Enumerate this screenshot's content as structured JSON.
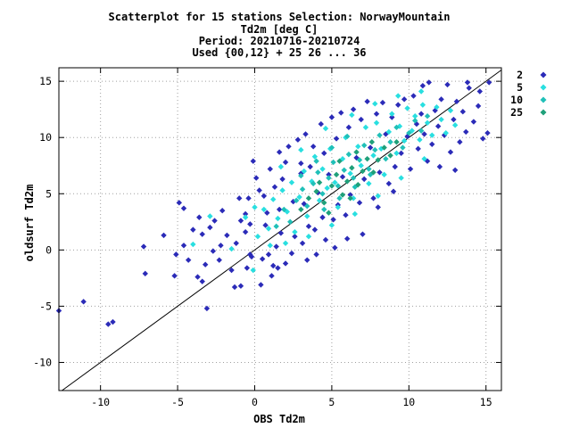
{
  "chart_data": {
    "type": "scatter",
    "title_lines": [
      "Scatterplot for   15 stations Selection: NorwayMountain",
      "Td2m [deg C]",
      "Period: 20210716-20210724",
      "Used {00,12} + 25 26 ... 36"
    ],
    "xlabel": "OBS Td2m",
    "ylabel": "oldsurf Td2m",
    "xlim": [
      -12.7,
      16.0
    ],
    "ylim": [
      -12.5,
      16.2
    ],
    "xticks": [
      -10,
      -5,
      0,
      5,
      10,
      15
    ],
    "yticks": [
      -10,
      -5,
      0,
      5,
      10,
      15
    ],
    "grid": true,
    "diagonal_line": true,
    "legend_position": "outside-right",
    "legend": [
      {
        "label": "2",
        "color": "#2b2bb8"
      },
      {
        "label": "5",
        "color": "#29dfe0"
      },
      {
        "label": "10",
        "color": "#20c0b8"
      },
      {
        "label": "25",
        "color": "#1fa07a"
      }
    ],
    "series": [
      {
        "name": "2",
        "color": "#2b2bb8",
        "points": [
          [
            -12.7,
            -5.4
          ],
          [
            -11.1,
            -4.6
          ],
          [
            -9.5,
            -6.6
          ],
          [
            -9.2,
            -6.4
          ],
          [
            -7.1,
            -2.1
          ],
          [
            -7.2,
            0.3
          ],
          [
            -5.9,
            1.3
          ],
          [
            -5.2,
            -2.3
          ],
          [
            -4.9,
            4.2
          ],
          [
            -4.6,
            0.4
          ],
          [
            -4.6,
            3.7
          ],
          [
            -4.3,
            -0.9
          ],
          [
            -3.7,
            -2.4
          ],
          [
            -3.4,
            1.4
          ],
          [
            -3.4,
            -2.8
          ],
          [
            -3.2,
            -1.3
          ],
          [
            -3.1,
            -5.2
          ],
          [
            -2.9,
            2.0
          ],
          [
            -2.7,
            -0.1
          ],
          [
            -2.3,
            -0.9
          ],
          [
            -2.2,
            0.4
          ],
          [
            -2.1,
            3.5
          ],
          [
            -1.8,
            1.3
          ],
          [
            -1.5,
            -1.8
          ],
          [
            -1.3,
            -3.3
          ],
          [
            -1.2,
            0.6
          ],
          [
            -1.0,
            4.6
          ],
          [
            -0.9,
            2.6
          ],
          [
            -0.9,
            -3.2
          ],
          [
            -0.6,
            1.6
          ],
          [
            -0.5,
            -1.6
          ],
          [
            -0.4,
            4.6
          ],
          [
            -0.3,
            -0.4
          ],
          [
            -0.3,
            2.3
          ],
          [
            -0.2,
            -0.6
          ],
          [
            0.3,
            5.3
          ],
          [
            0.4,
            -3.1
          ],
          [
            0.5,
            -0.8
          ],
          [
            0.6,
            4.8
          ],
          [
            0.7,
            2.2
          ],
          [
            0.9,
            -0.4
          ],
          [
            1.1,
            -2.3
          ],
          [
            1.3,
            5.6
          ],
          [
            1.4,
            0.3
          ],
          [
            1.5,
            -1.6
          ],
          [
            1.6,
            8.7
          ],
          [
            1.7,
            1.5
          ],
          [
            1.8,
            6.3
          ],
          [
            2.2,
            9.2
          ],
          [
            2.4,
            -0.3
          ],
          [
            2.5,
            4.3
          ],
          [
            2.6,
            1.2
          ],
          [
            2.8,
            9.8
          ],
          [
            3.0,
            7.7
          ],
          [
            3.1,
            0.6
          ],
          [
            3.2,
            4.1
          ],
          [
            3.3,
            10.3
          ],
          [
            3.5,
            2.1
          ],
          [
            3.6,
            7.4
          ],
          [
            3.8,
            9.2
          ],
          [
            3.9,
            1.8
          ],
          [
            4.1,
            5.1
          ],
          [
            4.3,
            11.2
          ],
          [
            4.4,
            2.9
          ],
          [
            4.5,
            8.6
          ],
          [
            4.6,
            0.9
          ],
          [
            4.8,
            6.7
          ],
          [
            5.0,
            11.8
          ],
          [
            5.1,
            2.7
          ],
          [
            5.3,
            9.9
          ],
          [
            5.4,
            4.0
          ],
          [
            5.6,
            12.2
          ],
          [
            5.7,
            6.5
          ],
          [
            5.9,
            3.1
          ],
          [
            6.1,
            10.9
          ],
          [
            6.2,
            4.9
          ],
          [
            6.4,
            12.5
          ],
          [
            6.6,
            8.2
          ],
          [
            6.8,
            4.2
          ],
          [
            6.9,
            11.6
          ],
          [
            7.1,
            6.3
          ],
          [
            7.3,
            13.2
          ],
          [
            7.5,
            9.1
          ],
          [
            7.7,
            4.6
          ],
          [
            7.9,
            12.1
          ],
          [
            8.1,
            6.9
          ],
          [
            8.3,
            13.1
          ],
          [
            8.5,
            10.3
          ],
          [
            8.7,
            5.9
          ],
          [
            8.9,
            11.8
          ],
          [
            9.1,
            7.4
          ],
          [
            9.3,
            12.9
          ],
          [
            9.5,
            8.6
          ],
          [
            9.7,
            13.4
          ],
          [
            9.9,
            10.1
          ],
          [
            10.1,
            7.2
          ],
          [
            10.3,
            13.7
          ],
          [
            10.5,
            11.2
          ],
          [
            10.6,
            9.0
          ],
          [
            10.8,
            12.1
          ],
          [
            11.0,
            10.3
          ],
          [
            11.2,
            7.9
          ],
          [
            11.3,
            14.9
          ],
          [
            11.5,
            9.4
          ],
          [
            11.7,
            12.4
          ],
          [
            11.9,
            11.0
          ],
          [
            12.1,
            13.4
          ],
          [
            12.3,
            10.2
          ],
          [
            12.5,
            14.7
          ],
          [
            12.7,
            8.7
          ],
          [
            12.9,
            11.6
          ],
          [
            13.1,
            13.2
          ],
          [
            13.3,
            9.6
          ],
          [
            13.5,
            12.3
          ],
          [
            13.7,
            10.5
          ],
          [
            13.9,
            14.4
          ],
          [
            14.2,
            11.4
          ],
          [
            14.5,
            12.8
          ],
          [
            14.8,
            9.9
          ],
          [
            15.1,
            10.4
          ],
          [
            15.2,
            14.9
          ],
          [
            14.6,
            14.1
          ],
          [
            13.8,
            14.9
          ],
          [
            13.0,
            7.1
          ],
          [
            12.0,
            7.4
          ],
          [
            10.9,
            14.6
          ],
          [
            9.0,
            5.2
          ],
          [
            8.0,
            3.8
          ],
          [
            7.0,
            1.4
          ],
          [
            6.0,
            1.0
          ],
          [
            5.2,
            0.2
          ],
          [
            4.0,
            -0.4
          ],
          [
            3.4,
            -0.9
          ],
          [
            2.0,
            -1.2
          ],
          [
            1.2,
            -1.4
          ],
          [
            0.1,
            6.4
          ],
          [
            -0.1,
            7.9
          ],
          [
            1.0,
            7.2
          ],
          [
            2.0,
            7.8
          ],
          [
            3.0,
            6.8
          ],
          [
            1.6,
            3.6
          ],
          [
            0.8,
            3.3
          ],
          [
            -0.6,
            3.2
          ],
          [
            -2.6,
            2.6
          ],
          [
            -3.6,
            2.9
          ],
          [
            -4.0,
            1.8
          ],
          [
            -5.1,
            -0.4
          ]
        ]
      },
      {
        "name": "5",
        "color": "#29dfe0",
        "points": [
          [
            -4.0,
            0.5
          ],
          [
            -2.9,
            3.0
          ],
          [
            -1.5,
            0.1
          ],
          [
            -0.6,
            2.9
          ],
          [
            -0.1,
            -1.8
          ],
          [
            0.2,
            1.2
          ],
          [
            0.6,
            3.6
          ],
          [
            0.9,
            1.9
          ],
          [
            1.2,
            4.5
          ],
          [
            1.5,
            2.8
          ],
          [
            1.8,
            5.3
          ],
          [
            2.1,
            3.4
          ],
          [
            2.4,
            6.0
          ],
          [
            2.6,
            1.6
          ],
          [
            2.9,
            4.7
          ],
          [
            3.2,
            7.0
          ],
          [
            3.4,
            3.0
          ],
          [
            3.7,
            6.1
          ],
          [
            3.9,
            8.3
          ],
          [
            4.2,
            4.4
          ],
          [
            4.4,
            7.2
          ],
          [
            4.7,
            5.5
          ],
          [
            4.9,
            9.0
          ],
          [
            5.2,
            6.0
          ],
          [
            5.4,
            3.8
          ],
          [
            5.7,
            8.1
          ],
          [
            5.9,
            10.0
          ],
          [
            6.2,
            6.8
          ],
          [
            6.4,
            4.6
          ],
          [
            6.7,
            9.2
          ],
          [
            6.9,
            7.5
          ],
          [
            7.2,
            10.9
          ],
          [
            7.4,
            5.9
          ],
          [
            7.7,
            8.4
          ],
          [
            7.9,
            11.3
          ],
          [
            8.2,
            9.0
          ],
          [
            8.4,
            6.7
          ],
          [
            8.7,
            10.5
          ],
          [
            8.9,
            12.1
          ],
          [
            9.2,
            8.6
          ],
          [
            9.4,
            11.0
          ],
          [
            9.7,
            9.7
          ],
          [
            9.9,
            12.6
          ],
          [
            10.2,
            10.6
          ],
          [
            10.4,
            11.9
          ],
          [
            10.7,
            9.8
          ],
          [
            10.9,
            12.9
          ],
          [
            11.2,
            11.3
          ],
          [
            11.5,
            10.2
          ],
          [
            11.8,
            12.7
          ],
          [
            12.1,
            11.6
          ],
          [
            12.4,
            10.4
          ],
          [
            12.7,
            12.4
          ],
          [
            13.0,
            11.1
          ],
          [
            1.0,
            0.4
          ],
          [
            2.0,
            0.6
          ],
          [
            3.5,
            1.2
          ],
          [
            0.0,
            3.8
          ],
          [
            1.7,
            7.4
          ],
          [
            3.0,
            8.9
          ],
          [
            4.6,
            10.8
          ],
          [
            6.3,
            12.0
          ],
          [
            7.8,
            13.0
          ],
          [
            9.3,
            13.7
          ],
          [
            10.8,
            14.1
          ],
          [
            5.0,
            2.2
          ],
          [
            6.5,
            3.2
          ],
          [
            8.0,
            4.8
          ],
          [
            9.5,
            6.4
          ],
          [
            11.0,
            8.1
          ]
        ]
      },
      {
        "name": "10",
        "color": "#20c0b8",
        "points": [
          [
            1.4,
            2.1
          ],
          [
            1.9,
            3.6
          ],
          [
            2.3,
            2.5
          ],
          [
            2.7,
            4.4
          ],
          [
            3.1,
            5.4
          ],
          [
            3.4,
            3.9
          ],
          [
            3.8,
            5.9
          ],
          [
            4.1,
            6.9
          ],
          [
            4.4,
            5.0
          ],
          [
            4.8,
            6.4
          ],
          [
            5.1,
            7.8
          ],
          [
            5.4,
            5.7
          ],
          [
            5.8,
            7.1
          ],
          [
            6.1,
            8.5
          ],
          [
            6.4,
            6.4
          ],
          [
            6.8,
            8.0
          ],
          [
            7.1,
            9.3
          ],
          [
            7.4,
            7.2
          ],
          [
            7.8,
            8.9
          ],
          [
            8.1,
            10.2
          ],
          [
            8.5,
            8.1
          ],
          [
            8.8,
            9.6
          ],
          [
            9.2,
            10.9
          ],
          [
            9.6,
            9.1
          ],
          [
            10.0,
            10.4
          ],
          [
            10.4,
            11.5
          ],
          [
            10.8,
            10.6
          ],
          [
            11.2,
            11.9
          ],
          [
            4.5,
            3.6
          ],
          [
            5.5,
            4.6
          ],
          [
            6.5,
            5.6
          ],
          [
            7.5,
            6.7
          ],
          [
            3.0,
            6.6
          ],
          [
            4.0,
            7.9
          ],
          [
            5.0,
            9.1
          ],
          [
            6.0,
            10.1
          ]
        ]
      },
      {
        "name": "25",
        "color": "#1fa07a",
        "points": [
          [
            3.0,
            3.6
          ],
          [
            3.5,
            4.6
          ],
          [
            4.0,
            5.2
          ],
          [
            4.5,
            4.2
          ],
          [
            5.0,
            5.7
          ],
          [
            5.3,
            6.7
          ],
          [
            5.7,
            4.9
          ],
          [
            6.0,
            6.1
          ],
          [
            6.3,
            7.3
          ],
          [
            6.7,
            5.8
          ],
          [
            7.0,
            7.0
          ],
          [
            7.3,
            8.1
          ],
          [
            7.7,
            6.9
          ],
          [
            8.0,
            8.0
          ],
          [
            8.4,
            9.1
          ],
          [
            8.8,
            8.4
          ],
          [
            9.2,
            9.6
          ],
          [
            4.2,
            6.0
          ],
          [
            5.5,
            7.9
          ],
          [
            6.6,
            8.7
          ],
          [
            7.6,
            9.6
          ],
          [
            4.8,
            3.3
          ],
          [
            6.2,
            4.6
          ]
        ]
      }
    ]
  }
}
